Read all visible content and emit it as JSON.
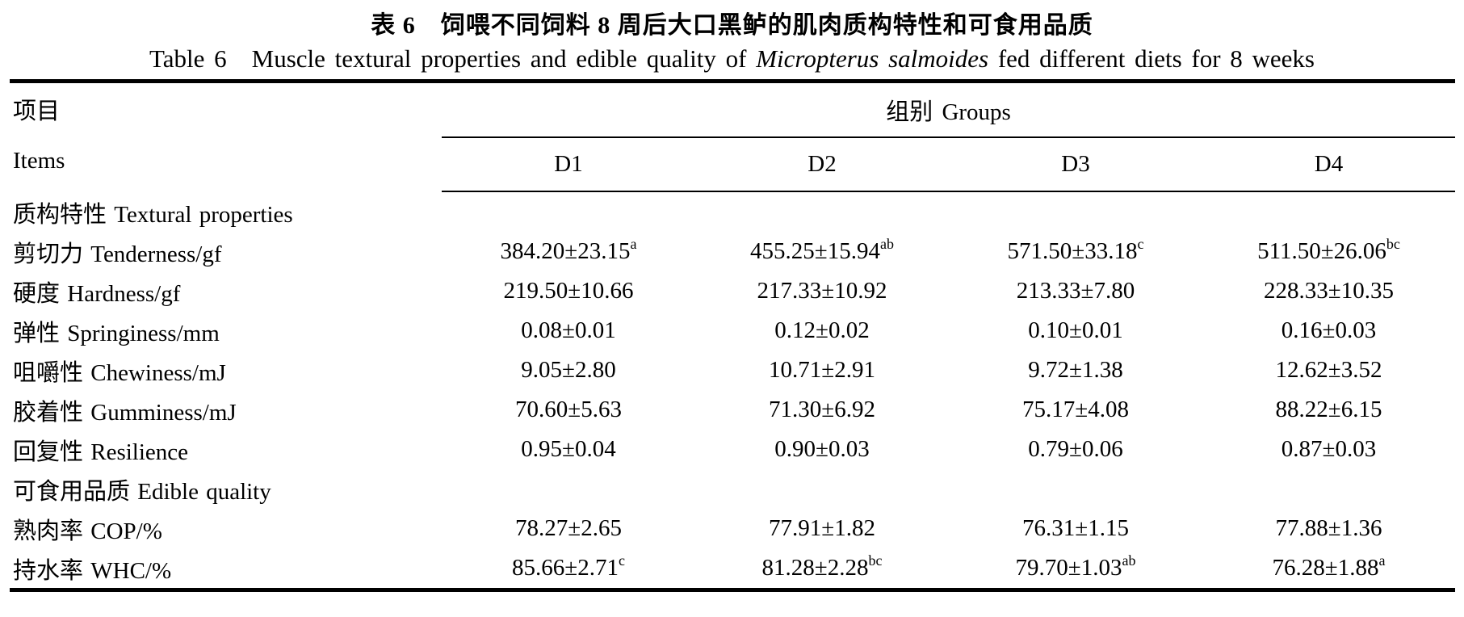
{
  "titles": {
    "zh": "表 6　饲喂不同饲料 8 周后大口黑鲈的肌肉质构特性和可食用品质",
    "en_prefix": "Table 6　Muscle textural properties and edible quality of ",
    "en_species": "Micropterus salmoides",
    "en_suffix": " fed different diets for 8 weeks"
  },
  "table": {
    "items_zh": "项目",
    "items_en": "Items",
    "groups_label": "组别 Groups",
    "group_columns": [
      "D1",
      "D2",
      "D3",
      "D4"
    ],
    "rows": [
      {
        "type": "section",
        "label": "质构特性 Textural properties"
      },
      {
        "type": "data",
        "label": "剪切力 Tenderness/gf",
        "values": [
          {
            "v": "384.20±23.15",
            "sup": "a"
          },
          {
            "v": "455.25±15.94",
            "sup": "ab"
          },
          {
            "v": "571.50±33.18",
            "sup": "c"
          },
          {
            "v": "511.50±26.06",
            "sup": "bc"
          }
        ]
      },
      {
        "type": "data",
        "label": "硬度 Hardness/gf",
        "values": [
          {
            "v": "219.50±10.66",
            "sup": ""
          },
          {
            "v": "217.33±10.92",
            "sup": ""
          },
          {
            "v": "213.33±7.80",
            "sup": ""
          },
          {
            "v": "228.33±10.35",
            "sup": ""
          }
        ]
      },
      {
        "type": "data",
        "label": "弹性 Springiness/mm",
        "values": [
          {
            "v": "0.08±0.01",
            "sup": ""
          },
          {
            "v": "0.12±0.02",
            "sup": ""
          },
          {
            "v": "0.10±0.01",
            "sup": ""
          },
          {
            "v": "0.16±0.03",
            "sup": ""
          }
        ]
      },
      {
        "type": "data",
        "label": "咀嚼性 Chewiness/mJ",
        "values": [
          {
            "v": "9.05±2.80",
            "sup": ""
          },
          {
            "v": "10.71±2.91",
            "sup": ""
          },
          {
            "v": "9.72±1.38",
            "sup": ""
          },
          {
            "v": "12.62±3.52",
            "sup": ""
          }
        ]
      },
      {
        "type": "data",
        "label": "胶着性 Gumminess/mJ",
        "values": [
          {
            "v": "70.60±5.63",
            "sup": ""
          },
          {
            "v": "71.30±6.92",
            "sup": ""
          },
          {
            "v": "75.17±4.08",
            "sup": ""
          },
          {
            "v": "88.22±6.15",
            "sup": ""
          }
        ]
      },
      {
        "type": "data",
        "label": "回复性 Resilience",
        "values": [
          {
            "v": "0.95±0.04",
            "sup": ""
          },
          {
            "v": "0.90±0.03",
            "sup": ""
          },
          {
            "v": "0.79±0.06",
            "sup": ""
          },
          {
            "v": "0.87±0.03",
            "sup": ""
          }
        ]
      },
      {
        "type": "section",
        "label": "可食用品质 Edible quality"
      },
      {
        "type": "data",
        "label": "熟肉率 COP/%",
        "values": [
          {
            "v": "78.27±2.65",
            "sup": ""
          },
          {
            "v": "77.91±1.82",
            "sup": ""
          },
          {
            "v": "76.31±1.15",
            "sup": ""
          },
          {
            "v": "77.88±1.36",
            "sup": ""
          }
        ]
      },
      {
        "type": "data",
        "label": "持水率 WHC/%",
        "values": [
          {
            "v": "85.66±2.71",
            "sup": "c"
          },
          {
            "v": "81.28±2.28",
            "sup": "bc"
          },
          {
            "v": "79.70±1.03",
            "sup": "ab"
          },
          {
            "v": "76.28±1.88",
            "sup": "a"
          }
        ]
      }
    ]
  }
}
